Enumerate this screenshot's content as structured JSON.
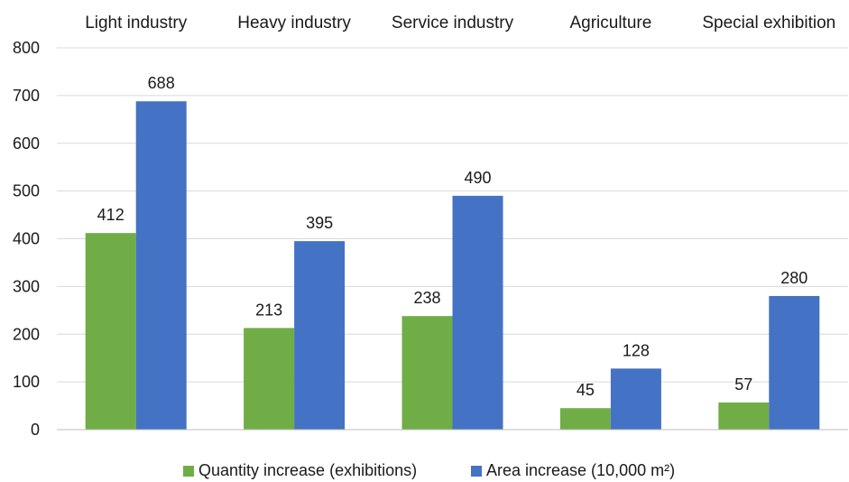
{
  "chart_data": {
    "type": "bar",
    "title": "",
    "xlabel": "",
    "ylabel": "",
    "categories": [
      "Light industry",
      "Heavy industry",
      "Service industry",
      "Agriculture",
      "Special exhibition"
    ],
    "series": [
      {
        "name": "Quantity increase (exhibitions)",
        "values": [
          412,
          213,
          238,
          45,
          57
        ],
        "color": "#70ad47"
      },
      {
        "name": "Area increase (10,000 m²)",
        "values": [
          688,
          395,
          490,
          128,
          280
        ],
        "color": "#4472c4"
      }
    ],
    "ylim": [
      0,
      800
    ],
    "yticks": [
      0,
      100,
      200,
      300,
      400,
      500,
      600,
      700,
      800
    ],
    "grid": true,
    "category_labels_position": "top",
    "legend_position": "bottom",
    "data_labels": true
  }
}
